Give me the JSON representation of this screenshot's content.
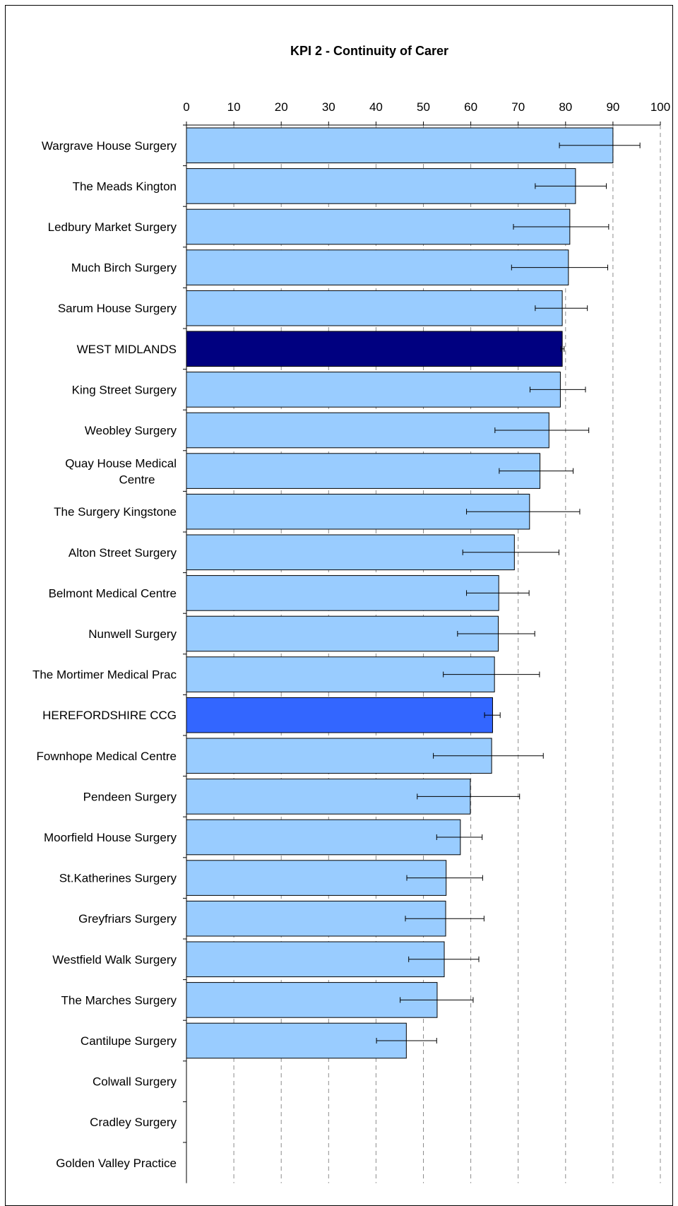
{
  "chart_data": {
    "type": "bar",
    "orientation": "horizontal",
    "title": "KPI 2 - Continuity of Carer",
    "xlabel": "",
    "ylabel": "",
    "xlim": [
      0,
      100
    ],
    "xticks": [
      0,
      10,
      20,
      30,
      40,
      50,
      60,
      70,
      80,
      90,
      100
    ],
    "grid": "vertical dashed",
    "colors": {
      "default_bar": "#99ccff",
      "region_bar": "#000080",
      "ccg_bar": "#3366ff",
      "gridline": "#8c8c8c",
      "error_bar": "#000000"
    },
    "categories": [
      "Wargrave House Surgery",
      "The Meads Kington",
      "Ledbury Market Surgery",
      "Much Birch Surgery",
      "Sarum House Surgery",
      "WEST MIDLANDS",
      "King Street Surgery",
      "Weobley Surgery",
      "Quay House Medical Centre",
      "The Surgery Kingstone",
      "Alton Street Surgery",
      "Belmont Medical Centre",
      "Nunwell Surgery",
      "The Mortimer Medical Prac",
      "HEREFORDSHIRE CCG",
      "Fownhope Medical Centre",
      "Pendeen Surgery",
      "Moorfield House Surgery",
      "St.Katherines Surgery",
      "Greyfriars Surgery",
      "Westfield Walk Surgery",
      "The Marches Surgery",
      "Cantilupe Surgery",
      "Colwall Surgery",
      "Cradley Surgery",
      "Golden Valley Practice"
    ],
    "values": [
      90.0,
      82.1,
      80.9,
      80.6,
      79.3,
      79.3,
      78.9,
      76.5,
      74.6,
      72.4,
      69.2,
      65.9,
      65.8,
      65.0,
      64.6,
      64.4,
      59.9,
      57.8,
      54.8,
      54.7,
      54.4,
      52.9,
      46.4,
      0,
      0,
      0
    ],
    "error_low": [
      78.7,
      73.6,
      69.0,
      68.6,
      73.6,
      79.0,
      72.5,
      65.1,
      66.0,
      59.1,
      58.3,
      59.1,
      57.2,
      54.2,
      62.9,
      52.1,
      48.7,
      52.8,
      46.5,
      46.2,
      46.9,
      45.1,
      40.1,
      0,
      0,
      0
    ],
    "error_high": [
      95.7,
      88.6,
      89.1,
      88.9,
      84.6,
      79.7,
      84.2,
      84.9,
      81.6,
      83.0,
      78.6,
      72.3,
      73.5,
      74.5,
      66.2,
      75.3,
      70.3,
      62.4,
      62.5,
      62.8,
      61.7,
      60.5,
      52.8,
      0,
      0,
      0
    ],
    "highlight": {
      "WEST MIDLANDS": "region_bar",
      "HEREFORDSHIRE CCG": "ccg_bar"
    }
  }
}
